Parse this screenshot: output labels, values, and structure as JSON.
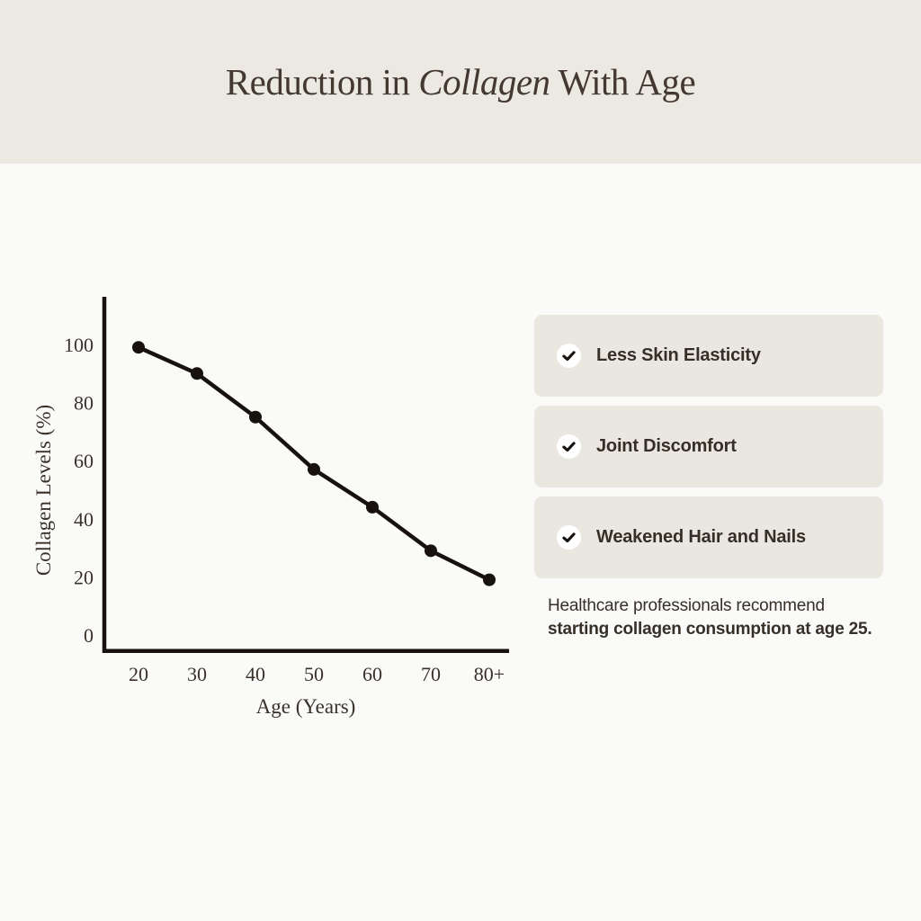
{
  "header": {
    "title_prefix": "Reduction in ",
    "title_italic": "Collagen",
    "title_suffix": " With Age"
  },
  "chart_data": {
    "type": "line",
    "title": "",
    "xlabel": "Age (Years)",
    "ylabel": "Collagen Levels (%)",
    "x_tick_labels": [
      "20",
      "30",
      "40",
      "50",
      "60",
      "70",
      "80+"
    ],
    "x_values": [
      20,
      30,
      40,
      50,
      60,
      70,
      80
    ],
    "y_ticks": [
      0,
      20,
      40,
      60,
      80,
      100
    ],
    "ylim": [
      0,
      116
    ],
    "grid": false,
    "legend": "none",
    "marker": "circle",
    "line_color": "#17120E",
    "series": [
      {
        "name": "Collagen Levels (%)",
        "values": [
          99,
          90,
          75,
          57,
          44,
          29,
          19
        ]
      }
    ]
  },
  "symptoms": {
    "items": [
      {
        "icon": "check-icon",
        "label": "Less Skin Elasticity"
      },
      {
        "icon": "check-icon",
        "label": "Joint Discomfort"
      },
      {
        "icon": "check-icon",
        "label": "Weakened Hair and Nails"
      }
    ]
  },
  "note": {
    "line1": "Healthcare professionals recommend",
    "line2": "starting collagen consumption at age 25."
  },
  "colors": {
    "header_bg": "#ECE9E3",
    "page_bg": "#FAFAF8",
    "card_bg": "#EAE6E0",
    "ink": "#17120E",
    "title_text": "#443930",
    "body_text": "#362F28",
    "chart_text": "#3A312A",
    "check_circle": "#FFFFFF"
  }
}
